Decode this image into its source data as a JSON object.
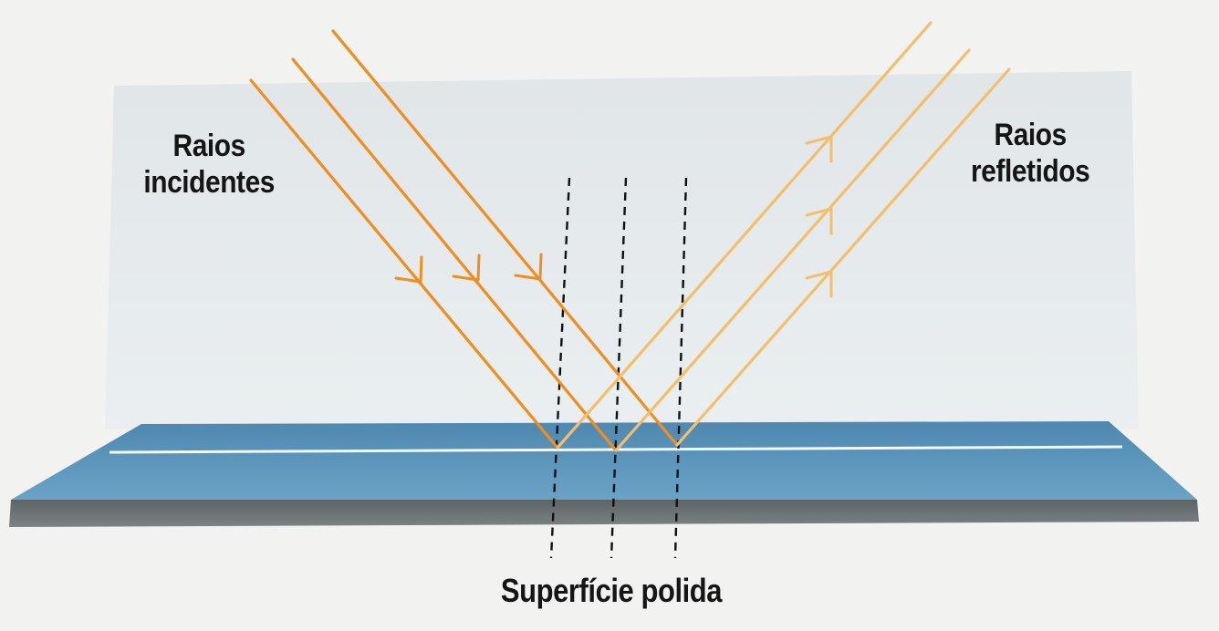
{
  "labels": {
    "incident_rays": [
      "Raios",
      "incidentes"
    ],
    "reflected_rays": [
      "Raios",
      "refletidos"
    ],
    "surface": "Superfície polida"
  },
  "colors": {
    "incident_ray": "#f08d1e",
    "reflected_ray": "#f3bf6c",
    "mirror_top": "#5f97bd",
    "mirror_edge": "#6b7275",
    "background_panel": "#dde3e6",
    "normal_line": "#111111"
  },
  "diagram": {
    "ray_count": 3,
    "normals": 3,
    "icons": [
      "arrowhead-icon"
    ]
  }
}
